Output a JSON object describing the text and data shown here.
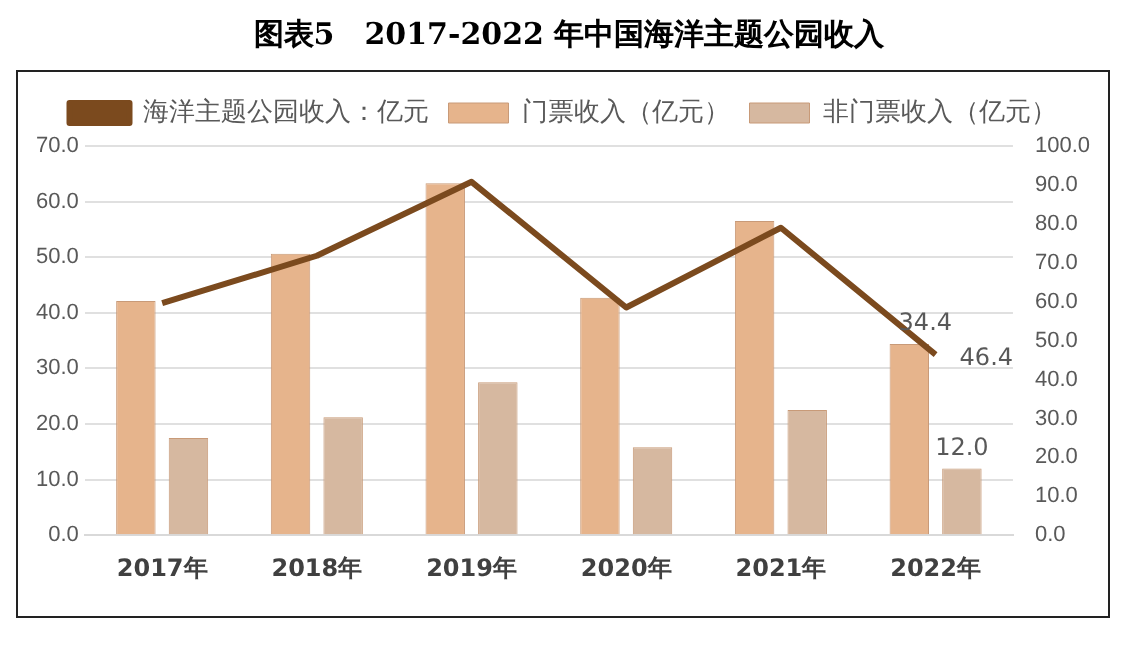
{
  "chart_data": {
    "type": "bar",
    "title": "图表5　2017-2022 年中国海洋主题公园收入",
    "categories": [
      "2017年",
      "2018年",
      "2019年",
      "2020年",
      "2021年",
      "2022年"
    ],
    "series": [
      {
        "name": "门票收入（亿元）",
        "color": "#e6b48c",
        "values": [
          42.1,
          50.6,
          63.3,
          42.7,
          56.5,
          34.4
        ],
        "value_labels": [
          null,
          null,
          null,
          null,
          null,
          "34.4"
        ]
      },
      {
        "name": "非门票收入（亿元）",
        "color": "#d6b8a0",
        "values": [
          17.5,
          21.2,
          27.5,
          15.8,
          22.5,
          12.0
        ],
        "value_labels": [
          null,
          null,
          null,
          null,
          null,
          "12.0"
        ]
      },
      {
        "name": "海洋主题公园收入：亿元",
        "type": "line",
        "axis": "y2",
        "color": "#7b4a1e",
        "values": [
          59.6,
          71.8,
          90.8,
          58.5,
          79.0,
          46.4
        ],
        "value_labels": [
          null,
          null,
          null,
          null,
          null,
          "46.4"
        ]
      }
    ],
    "ylim": [
      0,
      70
    ],
    "yticks": [
      {
        "value": 0,
        "label": "0.0"
      },
      {
        "value": 10,
        "label": "10.0"
      },
      {
        "value": 20,
        "label": "20.0"
      },
      {
        "value": 30,
        "label": "30.0"
      },
      {
        "value": 40,
        "label": "40.0"
      },
      {
        "value": 50,
        "label": "50.0"
      },
      {
        "value": 60,
        "label": "60.0"
      },
      {
        "value": 70,
        "label": "70.0"
      }
    ],
    "y2lim": [
      0,
      100
    ],
    "y2ticks": [
      {
        "value": 0,
        "label": "0.0"
      },
      {
        "value": 10,
        "label": "10.0"
      },
      {
        "value": 20,
        "label": "20.0"
      },
      {
        "value": 30,
        "label": "30.0"
      },
      {
        "value": 40,
        "label": "40.0"
      },
      {
        "value": 50,
        "label": "50.0"
      },
      {
        "value": 60,
        "label": "60.0"
      },
      {
        "value": 70,
        "label": "70.0"
      },
      {
        "value": 80,
        "label": "80.0"
      },
      {
        "value": 90,
        "label": "90.0"
      },
      {
        "value": 100,
        "label": "100.0"
      }
    ],
    "grid": "y",
    "legend": "top",
    "marker": "none"
  }
}
